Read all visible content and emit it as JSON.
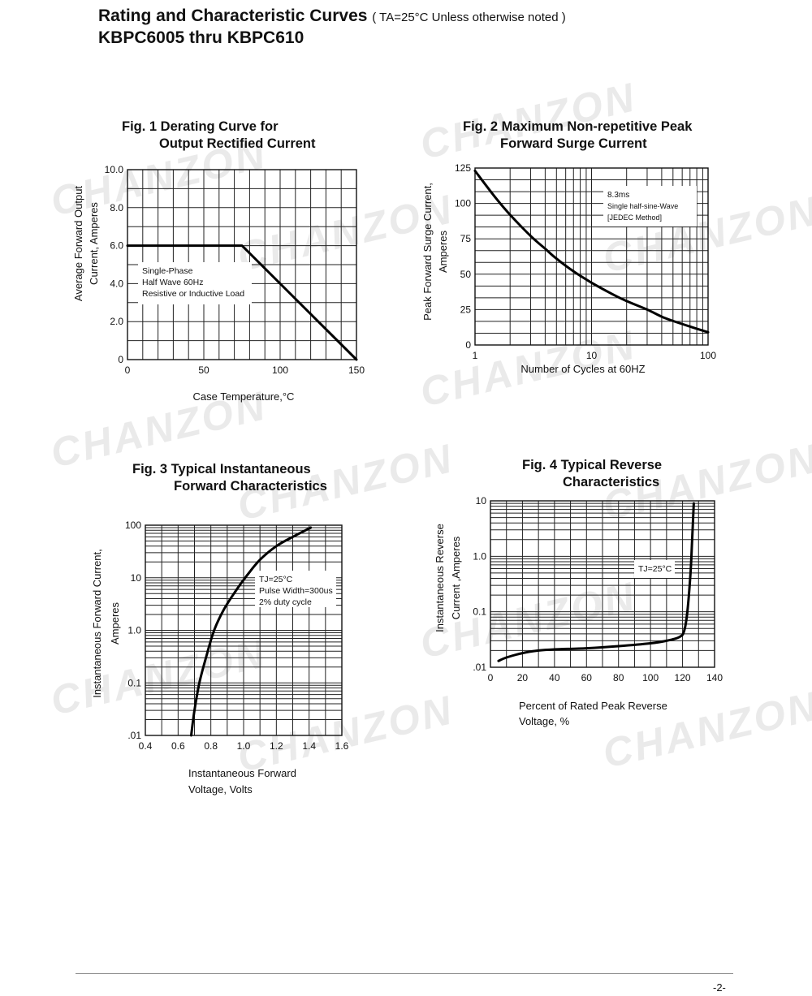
{
  "header": {
    "title": "Rating and Characteristic Curves",
    "condition": "( TA=25°C Unless otherwise noted )",
    "subtitle": "KBPC6005 thru KBPC610"
  },
  "watermark": "CHANZON",
  "footer": {
    "page": "-2-"
  },
  "chart_data": [
    {
      "id": "fig1",
      "type": "line",
      "title_line1": "Fig. 1 Derating Curve for",
      "title_line2": "Output Rectified Current",
      "ylabel_line1": "Average Forward Output",
      "ylabel_line2": "Current, Amperes",
      "xlabel": "Case Temperature,°C",
      "xlim": [
        0,
        150
      ],
      "ylim": [
        0,
        10
      ],
      "xticks": [
        0,
        50,
        100,
        150
      ],
      "xtick_labels": [
        "0",
        "50",
        "100",
        "150"
      ],
      "yticks": [
        0,
        2,
        4,
        6,
        8,
        10
      ],
      "ytick_labels": [
        "0",
        "2.0",
        "4.0",
        "6.0",
        "8.0",
        "10.0"
      ],
      "grid": true,
      "note": [
        "Single-Phase",
        "Half Wave 60Hz",
        "Resistive or Inductive Load"
      ],
      "x": [
        0,
        75,
        150
      ],
      "y": [
        6.0,
        6.0,
        0
      ]
    },
    {
      "id": "fig2",
      "type": "line",
      "title_line1": "Fig. 2 Maximum Non-repetitive Peak",
      "title_line2": "Forward Surge Current",
      "ylabel_line1": "Peak Forward Surge Current,",
      "ylabel_line2": "Amperes",
      "xlabel": "Number of Cycles at 60HZ",
      "xscale": "log",
      "xlim": [
        1,
        100
      ],
      "ylim": [
        0,
        125
      ],
      "xticks": [
        1,
        10,
        100
      ],
      "xtick_labels": [
        "1",
        "10",
        "100"
      ],
      "yticks": [
        0,
        25,
        50,
        75,
        100,
        125
      ],
      "ytick_labels": [
        "0",
        "25",
        "50",
        "75",
        "100",
        "125"
      ],
      "grid": true,
      "note": [
        "8.3ms",
        "Single half-sine-Wave",
        "[JEDEC Method]"
      ],
      "x": [
        1,
        1.5,
        2,
        3,
        4,
        5,
        7,
        10,
        15,
        20,
        30,
        40,
        50,
        70,
        100
      ],
      "y": [
        123,
        104,
        92,
        77,
        68,
        61,
        52,
        44,
        36,
        31,
        25,
        20,
        17,
        13,
        9
      ]
    },
    {
      "id": "fig3",
      "type": "line",
      "title_line1": "Fig. 3 Typical Instantaneous",
      "title_line2": "Forward Characteristics",
      "ylabel_line1": "Instantaneous Forward Current,",
      "ylabel_line2": "Amperes",
      "xlabel_line1": "Instantaneous Forward",
      "xlabel_line2": "Voltage, Volts",
      "yscale": "log",
      "xlim": [
        0.4,
        1.6
      ],
      "ylim": [
        0.01,
        100
      ],
      "xticks": [
        0.4,
        0.6,
        0.8,
        1.0,
        1.2,
        1.4,
        1.6
      ],
      "xtick_labels": [
        "0.4",
        "0.6",
        "0.8",
        "1.0",
        "1.2",
        "1.4",
        "1.6"
      ],
      "yticks": [
        0.01,
        0.1,
        1,
        10,
        100
      ],
      "ytick_labels": [
        ".01",
        "0.1",
        "1.0",
        "10",
        "100"
      ],
      "grid": true,
      "note": [
        "TJ=25°C",
        "Pulse Width=300us",
        "2% duty cycle"
      ],
      "x": [
        0.68,
        0.7,
        0.73,
        0.77,
        0.82,
        0.88,
        0.95,
        1.02,
        1.1,
        1.2,
        1.3,
        1.41
      ],
      "y": [
        0.01,
        0.03,
        0.1,
        0.3,
        1.0,
        2.5,
        5.5,
        11,
        22,
        40,
        60,
        90
      ]
    },
    {
      "id": "fig4",
      "type": "line",
      "title_line1": "Fig. 4 Typical Reverse",
      "title_line2": "Characteristics",
      "ylabel_line1": "Instantaneous Reverse",
      "ylabel_line2": "Current ,Amperes",
      "xlabel_line1": "Percent of Rated Peak Reverse",
      "xlabel_line2": "Voltage, %",
      "yscale": "log",
      "xlim": [
        0,
        140
      ],
      "ylim": [
        0.01,
        10
      ],
      "xticks": [
        0,
        20,
        40,
        60,
        80,
        100,
        120,
        140
      ],
      "xtick_labels": [
        "0",
        "20",
        "40",
        "60",
        "80",
        "100",
        "120",
        "140"
      ],
      "yticks": [
        0.01,
        0.1,
        1,
        10
      ],
      "ytick_labels": [
        ".01",
        "0.1",
        "1.0",
        "10"
      ],
      "grid": true,
      "note": [
        "TJ=25°C"
      ],
      "x": [
        5,
        10,
        20,
        30,
        40,
        60,
        80,
        100,
        110,
        118,
        121,
        123,
        125,
        126,
        127
      ],
      "y": [
        0.013,
        0.015,
        0.018,
        0.02,
        0.021,
        0.022,
        0.024,
        0.027,
        0.03,
        0.035,
        0.045,
        0.1,
        0.5,
        2,
        9
      ]
    }
  ]
}
